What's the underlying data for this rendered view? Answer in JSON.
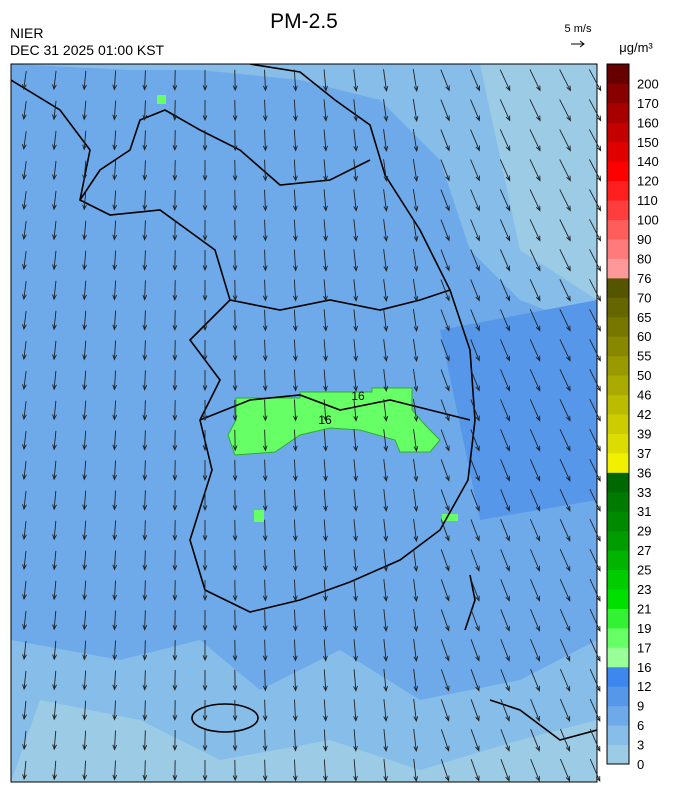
{
  "header": {
    "title": "PM-2.5",
    "agency": "NIER",
    "timestamp": "DEC 31 2025 01:00 KST",
    "wind_scale": "5 m/s",
    "unit": "μg/m³"
  },
  "map": {
    "contour_labels": [
      "16",
      "16"
    ]
  },
  "legend": {
    "levels": [
      0,
      3,
      6,
      9,
      12,
      16,
      17,
      19,
      21,
      23,
      25,
      27,
      29,
      31,
      33,
      36,
      37,
      39,
      42,
      46,
      50,
      55,
      60,
      65,
      70,
      76,
      80,
      90,
      100,
      110,
      120,
      140,
      150,
      160,
      170,
      200
    ],
    "colors": [
      "#9ccbe6",
      "#86bde9",
      "#6eaaea",
      "#5797ea",
      "#3e87ee",
      "#99ff99",
      "#66ff66",
      "#33f233",
      "#00e000",
      "#00cc00",
      "#00b400",
      "#009c00",
      "#008a00",
      "#007a00",
      "#006800",
      "#f0f000",
      "#dcdc00",
      "#cccc00",
      "#bbbb00",
      "#aaaa00",
      "#999900",
      "#888800",
      "#777700",
      "#666600",
      "#555500",
      "#ff9999",
      "#ff7b7b",
      "#ff5c5c",
      "#ff3d3d",
      "#ff1f1f",
      "#ff0000",
      "#e00000",
      "#c40000",
      "#a80000",
      "#880000",
      "#660000"
    ]
  }
}
